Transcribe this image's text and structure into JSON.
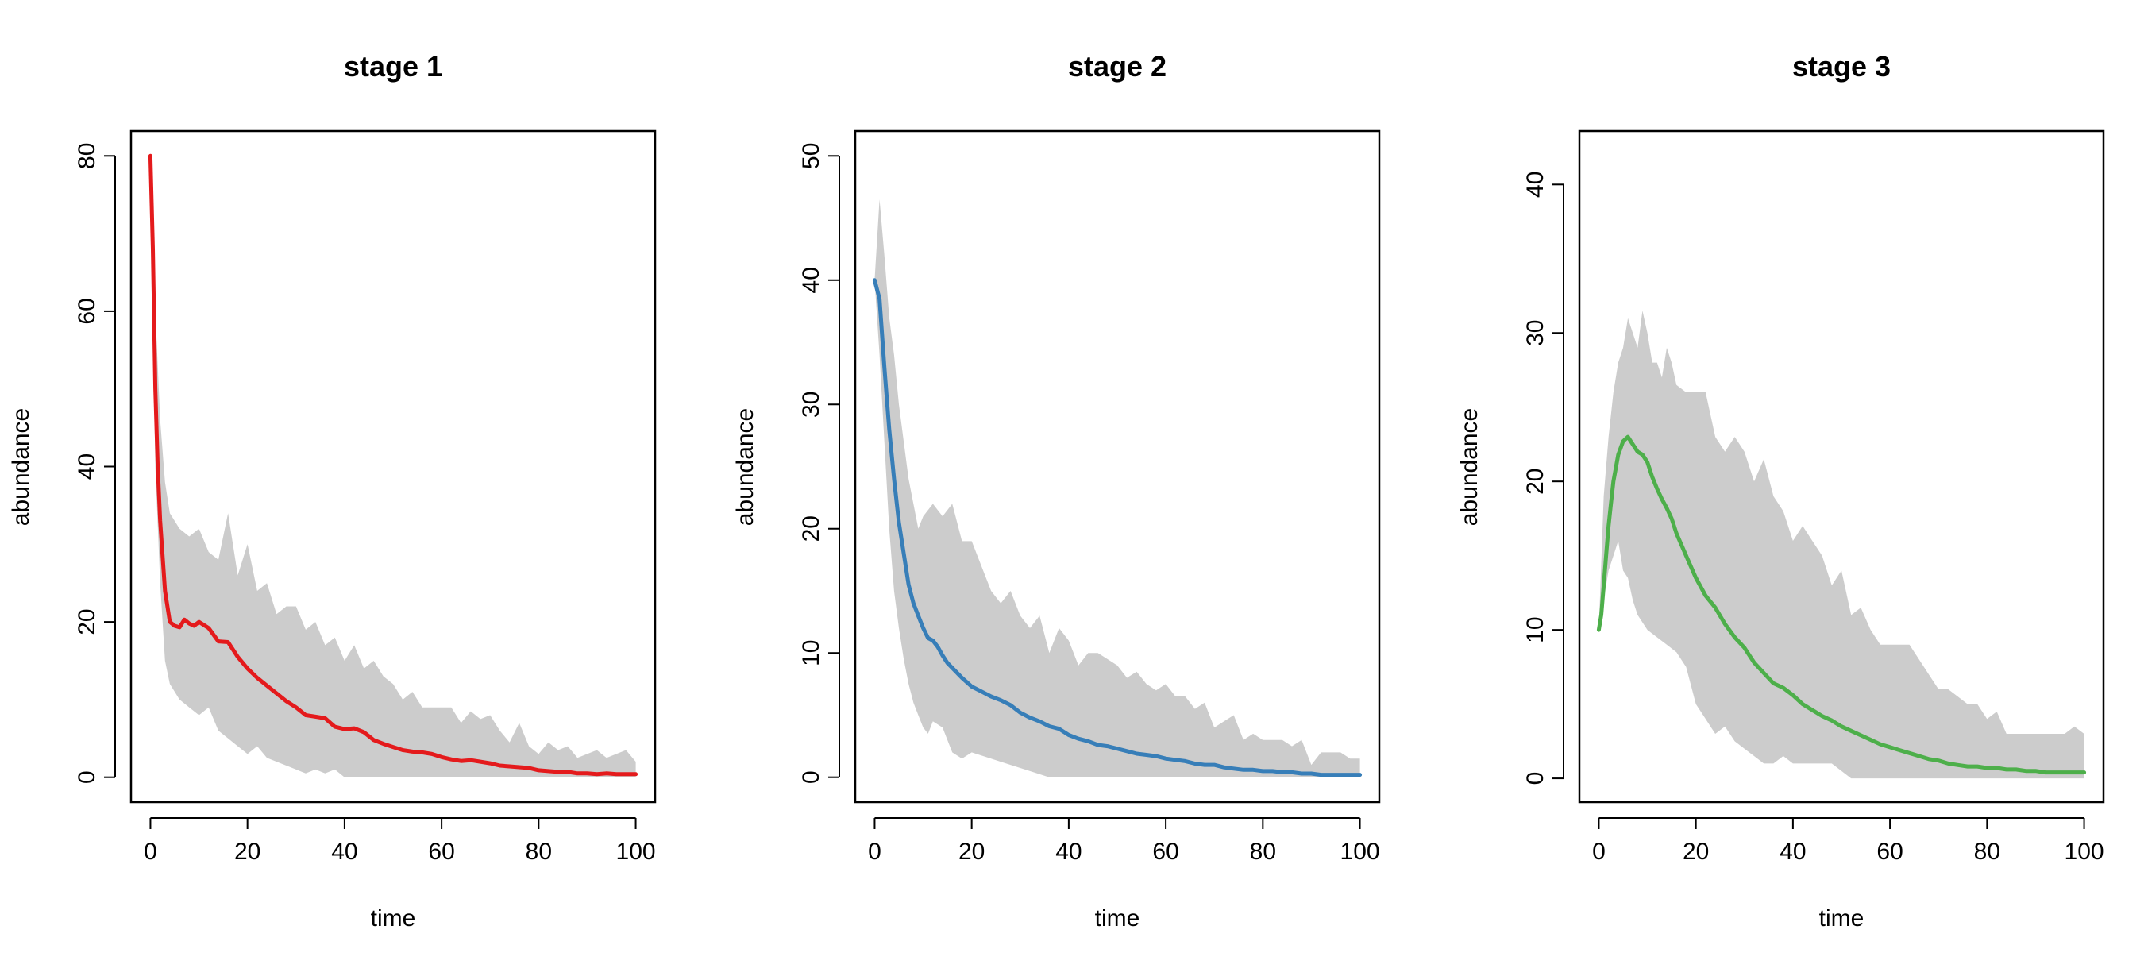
{
  "chart_data": [
    {
      "type": "line",
      "title": "stage 1",
      "xlabel": "time",
      "ylabel": "abundance",
      "xlim": [
        -4,
        104
      ],
      "ylim": [
        -3.2,
        83.2
      ],
      "xticks": [
        0,
        20,
        40,
        60,
        80,
        100
      ],
      "yticks": [
        0,
        20,
        40,
        60,
        80
      ],
      "xtick_labels": [
        "0",
        "20",
        "40",
        "60",
        "80",
        "100"
      ],
      "ytick_labels": [
        "0",
        "20",
        "40",
        60,
        "80"
      ],
      "grid": false,
      "line_color": "#e41a1c",
      "band_color": "#cccccc",
      "series": [
        {
          "role": "mean",
          "x": [
            0,
            0.5,
            1,
            1.5,
            2,
            3,
            4,
            5,
            6,
            7,
            8,
            9,
            10,
            12,
            14,
            16,
            18,
            20,
            22,
            24,
            26,
            28,
            30,
            32,
            34,
            36,
            38,
            40,
            42,
            44,
            46,
            48,
            50,
            52,
            54,
            56,
            58,
            60,
            62,
            64,
            66,
            68,
            70,
            72,
            74,
            76,
            78,
            80,
            82,
            84,
            86,
            88,
            90,
            92,
            94,
            96,
            98,
            100
          ],
          "y": [
            80,
            68,
            50,
            40,
            33,
            24,
            20,
            19.5,
            19.3,
            20.3,
            19.8,
            19.5,
            20,
            19.2,
            17.5,
            17.4,
            15.5,
            14,
            12.8,
            11.8,
            10.8,
            9.8,
            9,
            8,
            7.8,
            7.6,
            6.5,
            6.2,
            6.3,
            5.8,
            4.8,
            4.3,
            3.9,
            3.5,
            3.3,
            3.2,
            3,
            2.6,
            2.3,
            2.1,
            2.2,
            2,
            1.8,
            1.5,
            1.4,
            1.3,
            1.2,
            0.9,
            0.8,
            0.7,
            0.7,
            0.5,
            0.5,
            0.4,
            0.5,
            0.4,
            0.4,
            0.4
          ]
        },
        {
          "role": "upper",
          "x": [
            0,
            1,
            2,
            3,
            4,
            6,
            8,
            10,
            12,
            14,
            16,
            18,
            20,
            22,
            24,
            26,
            28,
            30,
            32,
            34,
            36,
            38,
            40,
            42,
            44,
            46,
            48,
            50,
            52,
            54,
            56,
            58,
            60,
            62,
            64,
            66,
            68,
            70,
            72,
            74,
            76,
            78,
            80,
            82,
            84,
            86,
            88,
            90,
            92,
            94,
            96,
            98,
            100
          ],
          "y": [
            80,
            60,
            46,
            38,
            34,
            32,
            31,
            32,
            29,
            28,
            34,
            26,
            30,
            24,
            25,
            21,
            22,
            22,
            19,
            20,
            17,
            18,
            15,
            17,
            14,
            15,
            13,
            12,
            10,
            11,
            9,
            9,
            9,
            9,
            7,
            8.5,
            7.5,
            8,
            6,
            4.5,
            7,
            4,
            3,
            4.5,
            3.5,
            4,
            2.5,
            3,
            3.5,
            2.5,
            3,
            3.5,
            2
          ]
        },
        {
          "role": "lower",
          "x": [
            0,
            1,
            2,
            3,
            4,
            6,
            8,
            10,
            12,
            14,
            16,
            18,
            20,
            22,
            24,
            26,
            28,
            30,
            32,
            34,
            36,
            38,
            40,
            42,
            44,
            46,
            48,
            50,
            55,
            60,
            65,
            70,
            75,
            80,
            85,
            90,
            95,
            100
          ],
          "y": [
            80,
            40,
            25,
            15,
            12,
            10,
            9,
            8,
            9,
            6,
            5,
            4,
            3,
            4,
            2.5,
            2,
            1.5,
            1,
            0.5,
            1,
            0.5,
            1,
            0,
            0,
            0,
            0,
            0,
            0,
            0,
            0,
            0,
            0,
            0,
            0,
            0,
            0,
            0,
            0
          ]
        }
      ]
    },
    {
      "type": "line",
      "title": "stage 2",
      "xlabel": "time",
      "ylabel": "abundance",
      "xlim": [
        -4,
        104
      ],
      "ylim": [
        -2,
        52
      ],
      "xticks": [
        0,
        20,
        40,
        60,
        80,
        100
      ],
      "yticks": [
        0,
        10,
        20,
        30,
        40,
        50
      ],
      "xtick_labels": [
        "0",
        "20",
        "40",
        "60",
        "80",
        "100"
      ],
      "ytick_labels": [
        "0",
        "10",
        "20",
        "30",
        "40",
        "50"
      ],
      "grid": false,
      "line_color": "#377eb8",
      "band_color": "#cccccc",
      "series": [
        {
          "role": "mean",
          "x": [
            0,
            1,
            2,
            3,
            4,
            5,
            6,
            7,
            8,
            9,
            10,
            11,
            12,
            13,
            14,
            15,
            16,
            18,
            20,
            22,
            24,
            26,
            28,
            30,
            32,
            34,
            36,
            38,
            40,
            42,
            44,
            46,
            48,
            50,
            52,
            54,
            56,
            58,
            60,
            62,
            64,
            66,
            68,
            70,
            72,
            74,
            76,
            78,
            80,
            82,
            84,
            86,
            88,
            90,
            92,
            94,
            96,
            98,
            100
          ],
          "y": [
            40,
            38.5,
            33,
            28,
            24,
            20.5,
            18,
            15.5,
            14,
            13,
            12,
            11.2,
            11,
            10.5,
            9.8,
            9.2,
            8.8,
            8,
            7.3,
            6.9,
            6.5,
            6.2,
            5.8,
            5.2,
            4.8,
            4.5,
            4.1,
            3.9,
            3.4,
            3.1,
            2.9,
            2.6,
            2.5,
            2.3,
            2.1,
            1.9,
            1.8,
            1.7,
            1.5,
            1.4,
            1.3,
            1.1,
            1,
            1,
            0.8,
            0.7,
            0.6,
            0.6,
            0.5,
            0.5,
            0.4,
            0.4,
            0.3,
            0.3,
            0.2,
            0.2,
            0.2,
            0.2,
            0.2
          ]
        },
        {
          "role": "upper",
          "x": [
            0,
            1,
            2,
            3,
            4,
            5,
            6,
            7,
            8,
            9,
            10,
            12,
            14,
            16,
            18,
            20,
            22,
            24,
            26,
            28,
            30,
            32,
            34,
            36,
            38,
            40,
            42,
            44,
            46,
            48,
            50,
            52,
            54,
            56,
            58,
            60,
            62,
            64,
            66,
            68,
            70,
            72,
            74,
            76,
            78,
            80,
            82,
            84,
            86,
            88,
            90,
            92,
            94,
            96,
            98,
            100
          ],
          "y": [
            40,
            46.5,
            42,
            37,
            34,
            30,
            27,
            24,
            22,
            20,
            21,
            22,
            21,
            22,
            19,
            19,
            17,
            15,
            14,
            15,
            13,
            12,
            13,
            10,
            12,
            11,
            9,
            10,
            10,
            9.5,
            9,
            8,
            8.5,
            7.5,
            7,
            7.5,
            6.5,
            6.5,
            5.5,
            6,
            4,
            4.5,
            5,
            3,
            3.5,
            3,
            3,
            3,
            2.5,
            3,
            1,
            2,
            2,
            2,
            1.5,
            1.5
          ]
        },
        {
          "role": "lower",
          "x": [
            0,
            1,
            2,
            3,
            4,
            5,
            6,
            7,
            8,
            9,
            10,
            11,
            12,
            14,
            16,
            18,
            20,
            24,
            28,
            32,
            36,
            40,
            50,
            60,
            70,
            80,
            90,
            100
          ],
          "y": [
            40,
            34,
            27,
            20,
            15,
            12,
            9.5,
            7.5,
            6,
            5,
            4,
            3.5,
            4.5,
            4,
            2,
            1.5,
            2,
            1.5,
            1,
            0.5,
            0,
            0,
            0,
            0,
            0,
            0,
            0,
            0
          ]
        }
      ]
    },
    {
      "type": "line",
      "title": "stage 3",
      "xlabel": "time",
      "ylabel": "abundance",
      "xlim": [
        -4,
        104
      ],
      "ylim": [
        -1.6,
        43.6
      ],
      "xticks": [
        0,
        20,
        40,
        60,
        80,
        100
      ],
      "yticks": [
        0,
        10,
        20,
        30,
        40
      ],
      "xtick_labels": [
        "0",
        "20",
        "40",
        "60",
        "80",
        "100"
      ],
      "ytick_labels": [
        "0",
        "10",
        "20",
        "30",
        "40"
      ],
      "grid": false,
      "line_color": "#4daf4a",
      "band_color": "#cccccc",
      "series": [
        {
          "role": "mean",
          "x": [
            0,
            0.5,
            1,
            1.5,
            2,
            2.5,
            3,
            4,
            5,
            6,
            7,
            8,
            9,
            10,
            11,
            12,
            13,
            14,
            15,
            16,
            18,
            20,
            22,
            24,
            26,
            28,
            30,
            32,
            34,
            36,
            38,
            40,
            42,
            44,
            46,
            48,
            50,
            52,
            54,
            56,
            58,
            60,
            62,
            64,
            66,
            68,
            70,
            72,
            74,
            76,
            78,
            80,
            82,
            84,
            86,
            88,
            90,
            92,
            94,
            96,
            98,
            100
          ],
          "y": [
            10,
            11,
            13,
            15,
            17,
            18.5,
            20,
            21.8,
            22.7,
            23,
            22.5,
            22,
            21.8,
            21.3,
            20.3,
            19.5,
            18.8,
            18.2,
            17.5,
            16.5,
            15,
            13.5,
            12.3,
            11.5,
            10.4,
            9.5,
            8.8,
            7.8,
            7.1,
            6.4,
            6.1,
            5.6,
            5,
            4.6,
            4.2,
            3.9,
            3.5,
            3.2,
            2.9,
            2.6,
            2.3,
            2.1,
            1.9,
            1.7,
            1.5,
            1.3,
            1.2,
            1,
            0.9,
            0.8,
            0.8,
            0.7,
            0.7,
            0.6,
            0.6,
            0.5,
            0.5,
            0.4,
            0.4,
            0.4,
            0.4,
            0.4
          ]
        },
        {
          "role": "upper",
          "x": [
            0,
            1,
            2,
            3,
            4,
            5,
            6,
            7,
            8,
            9,
            10,
            11,
            12,
            13,
            14,
            15,
            16,
            18,
            20,
            22,
            24,
            26,
            28,
            30,
            32,
            34,
            36,
            38,
            40,
            42,
            44,
            46,
            48,
            50,
            52,
            54,
            56,
            58,
            60,
            62,
            64,
            66,
            68,
            70,
            72,
            74,
            76,
            78,
            80,
            82,
            84,
            86,
            88,
            90,
            92,
            94,
            96,
            98,
            100
          ],
          "y": [
            10,
            19,
            23,
            26,
            28,
            29,
            31,
            30,
            29,
            31.5,
            30,
            28,
            28,
            27,
            29,
            28,
            26.5,
            26,
            26,
            26,
            23,
            22,
            23,
            22,
            20,
            21.5,
            19,
            18,
            16,
            17,
            16,
            15,
            13,
            14,
            11,
            11.5,
            10,
            9,
            9,
            9,
            9,
            8,
            7,
            6,
            6,
            5.5,
            5,
            5,
            4,
            4.5,
            3,
            3,
            3,
            3,
            3,
            3,
            3,
            3.5,
            3
          ]
        },
        {
          "role": "lower",
          "x": [
            0,
            1,
            2,
            3,
            4,
            5,
            6,
            7,
            8,
            10,
            12,
            14,
            16,
            18,
            20,
            22,
            24,
            26,
            28,
            30,
            32,
            34,
            36,
            38,
            40,
            44,
            48,
            52,
            60,
            70,
            80,
            90,
            100
          ],
          "y": [
            10,
            12,
            14,
            15,
            16,
            14,
            13.5,
            12,
            11,
            10,
            9.5,
            9,
            8.5,
            7.5,
            5,
            4,
            3,
            3.5,
            2.5,
            2,
            1.5,
            1,
            1,
            1.5,
            1,
            1,
            1,
            0,
            0,
            0,
            0,
            0,
            0
          ]
        }
      ]
    }
  ]
}
